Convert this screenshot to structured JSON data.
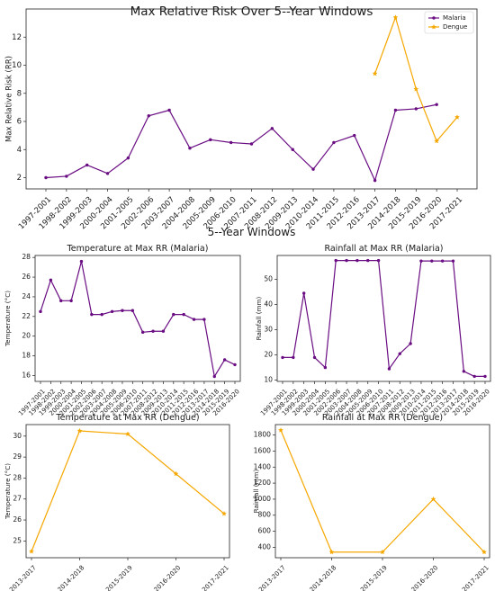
{
  "chart_data": [
    {
      "id": "main",
      "type": "line",
      "title": "Max Relative Risk Over 5--Year Windows",
      "xlabel": "5--Year Windows",
      "ylabel": "Max Relative Risk (RR)",
      "categories": [
        "1997-2001",
        "1998-2002",
        "1999-2003",
        "2000-2004",
        "2001-2005",
        "2002-2006",
        "2003-2007",
        "2004-2008",
        "2005-2009",
        "2006-2010",
        "2007-2011",
        "2008-2012",
        "2009-2013",
        "2010-2014",
        "2011-2015",
        "2012-2016",
        "2013-2017",
        "2014-2018",
        "2015-2019",
        "2016-2020",
        "2017-2021"
      ],
      "yticks": [
        2,
        4,
        6,
        8,
        10,
        12
      ],
      "ylim": [
        1.2,
        14.0
      ],
      "legend": "top-right",
      "series": [
        {
          "name": "Malaria",
          "color": "#6a0d83",
          "marker": "circle",
          "values": [
            2.0,
            2.1,
            2.9,
            2.3,
            3.4,
            6.4,
            6.8,
            4.1,
            4.7,
            4.5,
            4.4,
            5.5,
            4.0,
            2.6,
            4.5,
            5.0,
            1.8,
            6.8,
            6.9,
            7.2,
            null
          ]
        },
        {
          "name": "Dengue",
          "color": "#f5a700",
          "marker": "star",
          "values": [
            null,
            null,
            null,
            null,
            null,
            null,
            null,
            null,
            null,
            null,
            null,
            null,
            null,
            null,
            null,
            null,
            9.4,
            13.4,
            8.3,
            4.6,
            6.3
          ]
        }
      ]
    },
    {
      "id": "temp-malaria",
      "type": "line",
      "title": "Temperature at Max RR (Malaria)",
      "xlabel": "",
      "ylabel": "Temperature (°C)",
      "categories": [
        "1997-2001",
        "1998-2002",
        "1999-2003",
        "2000-2004",
        "2001-2005",
        "2002-2006",
        "2003-2007",
        "2004-2008",
        "2005-2009",
        "2006-2010",
        "2007-2011",
        "2008-2012",
        "2009-2013",
        "2010-2014",
        "2011-2015",
        "2012-2016",
        "2013-2017",
        "2014-2018",
        "2015-2019",
        "2016-2020"
      ],
      "yticks": [
        16,
        18,
        20,
        22,
        24,
        26,
        28
      ],
      "ylim": [
        15.4,
        28.2
      ],
      "series": [
        {
          "color": "#6a0d83",
          "marker": "circle",
          "values": [
            22.5,
            25.7,
            23.6,
            23.6,
            27.6,
            22.2,
            22.2,
            22.5,
            22.6,
            22.6,
            20.4,
            20.5,
            20.5,
            22.2,
            22.2,
            21.7,
            21.7,
            15.9,
            17.6,
            17.1
          ]
        }
      ]
    },
    {
      "id": "rain-malaria",
      "type": "line",
      "title": "Rainfall at Max RR (Malaria)",
      "xlabel": "",
      "ylabel": "Rainfall (mm)",
      "categories": [
        "1997-2001",
        "1998-2002",
        "1999-2003",
        "2000-2004",
        "2001-2005",
        "2002-2006",
        "2003-2007",
        "2004-2008",
        "2005-2009",
        "2006-2010",
        "2007-2011",
        "2008-2012",
        "2009-2013",
        "2010-2014",
        "2011-2015",
        "2012-2016",
        "2013-2017",
        "2014-2018",
        "2015-2019",
        "2016-2020"
      ],
      "yticks": [
        10,
        20,
        30,
        40,
        50
      ],
      "ylim": [
        9.5,
        59.5
      ],
      "series": [
        {
          "color": "#6a0d83",
          "marker": "circle",
          "values": [
            19.0,
            19.0,
            44.5,
            19.0,
            15.0,
            57.5,
            57.5,
            57.5,
            57.5,
            57.5,
            14.5,
            20.5,
            24.5,
            57.3,
            57.3,
            57.3,
            57.3,
            13.5,
            11.5,
            11.5
          ]
        }
      ]
    },
    {
      "id": "temp-dengue",
      "type": "line",
      "title": "Temperature at Max RR (Dengue)",
      "xlabel": "",
      "ylabel": "Temperature (°C)",
      "categories": [
        "2013-2017",
        "2014-2018",
        "2015-2019",
        "2016-2020",
        "2017-2021"
      ],
      "yticks": [
        25,
        26,
        27,
        28,
        29,
        30
      ],
      "ylim": [
        24.2,
        30.55
      ],
      "series": [
        {
          "color": "#f5a700",
          "marker": "star",
          "values": [
            24.5,
            30.25,
            30.1,
            28.2,
            26.3
          ]
        }
      ]
    },
    {
      "id": "rain-dengue",
      "type": "line",
      "title": "Rainfall at Max RR (Dengue)",
      "xlabel": "",
      "ylabel": "Rainfall (mm)",
      "categories": [
        "2013-2017",
        "2014-2018",
        "2015-2019",
        "2016-2020",
        "2017-2021"
      ],
      "yticks": [
        400,
        600,
        800,
        1000,
        1200,
        1400,
        1600,
        1800
      ],
      "ylim": [
        270,
        1930
      ],
      "series": [
        {
          "color": "#f5a700",
          "marker": "star",
          "values": [
            1860,
            340,
            340,
            1000,
            340
          ]
        }
      ]
    }
  ]
}
